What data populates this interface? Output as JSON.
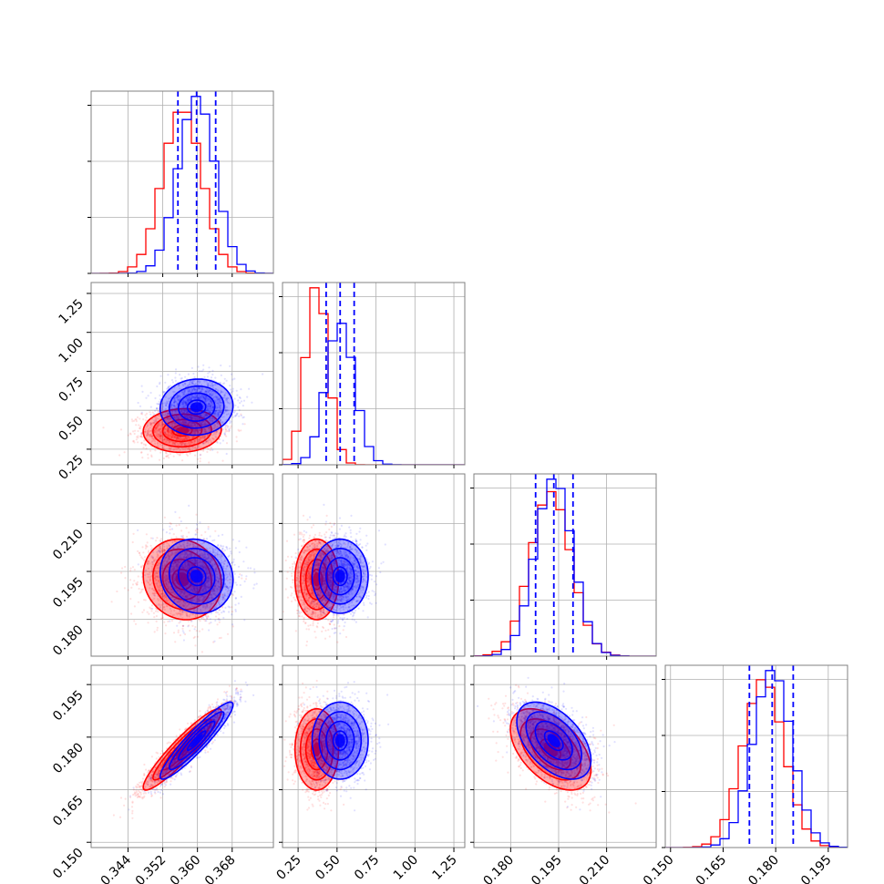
{
  "colors": {
    "series_a": "#0000ff",
    "series_b": "#ff0000",
    "frame": "#808080",
    "grid": "#b0b0b0"
  },
  "chart_data": {
    "type": "corner",
    "grid": true,
    "legend": null,
    "title": "",
    "quantile_line_style": "dashed",
    "parameters": [
      {
        "range": [
          0.3355,
          0.3775
        ],
        "ticks": [
          "0.344",
          "0.352",
          "0.360",
          "0.368"
        ],
        "tick_values": [
          0.344,
          0.352,
          0.36,
          0.368
        ],
        "label": ""
      },
      {
        "range": [
          0.15,
          1.32
        ],
        "ticks": [
          "0.25",
          "0.50",
          "0.75",
          "1.00",
          "1.25"
        ],
        "tick_values": [
          0.25,
          0.5,
          0.75,
          1.0,
          1.25
        ],
        "label": ""
      },
      {
        "range": [
          0.1685,
          0.2255
        ],
        "ticks": [
          "0.180",
          "0.195",
          "0.210"
        ],
        "tick_values": [
          0.18,
          0.195,
          0.21
        ],
        "label": ""
      },
      {
        "range": [
          0.1485,
          0.2005
        ],
        "ticks": [
          "0.150",
          "0.165",
          "0.180",
          "0.195"
        ],
        "tick_values": [
          0.15,
          0.165,
          0.18,
          0.195
        ],
        "label": ""
      }
    ],
    "series": [
      {
        "color": "#0000ff",
        "mean": [
          0.3598,
          0.52,
          0.1935,
          0.179
        ],
        "std": [
          0.0042,
          0.09,
          0.0058,
          0.0055
        ],
        "quantiles_16_50_84": [
          [
            0.3555,
            0.3598,
            0.3642
          ],
          [
            0.43,
            0.52,
            0.61
          ],
          [
            0.1878,
            0.1935,
            0.1995
          ],
          [
            0.1725,
            0.179,
            0.185
          ]
        ],
        "correlations": {
          "0-1": 0.05,
          "0-2": -0.1,
          "0-3": 0.93,
          "1-2": 0.0,
          "1-3": 0.0,
          "2-3": -0.5
        }
      },
      {
        "color": "#ff0000",
        "mean": [
          0.3565,
          0.37,
          0.1925,
          0.1765
        ],
        "std": [
          0.0045,
          0.07,
          0.0063,
          0.0058
        ],
        "quantiles_16_50_84": [],
        "correlations": {
          "0-1": 0.05,
          "0-2": -0.1,
          "0-3": 0.93,
          "1-2": 0.0,
          "1-3": 0.0,
          "2-3": -0.5
        }
      }
    ]
  }
}
